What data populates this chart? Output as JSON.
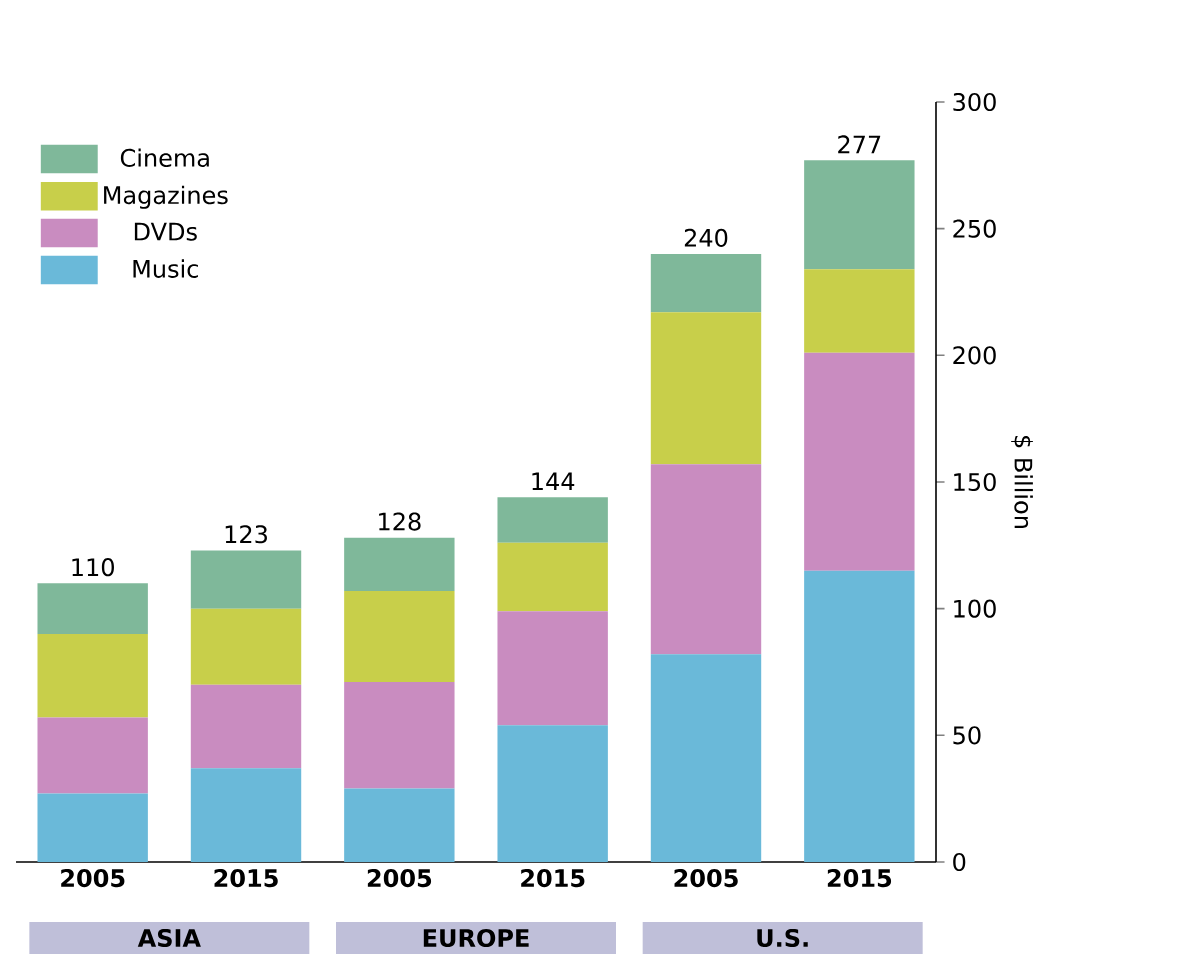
{
  "chart_data": {
    "type": "bar",
    "stacked": true,
    "categories": [
      "2005",
      "2015",
      "2005",
      "2015",
      "2005",
      "2015"
    ],
    "series": [
      {
        "name": "Music",
        "color": "#6ab9d9",
        "values": [
          27,
          37,
          29,
          54,
          82,
          115
        ]
      },
      {
        "name": "DVDs",
        "color": "#c98cc0",
        "values": [
          30,
          33,
          42,
          45,
          75,
          86
        ]
      },
      {
        "name": "Magazines",
        "color": "#c8cf4a",
        "values": [
          33,
          30,
          36,
          27,
          60,
          33
        ]
      },
      {
        "name": "Cinema",
        "color": "#7fb89a",
        "values": [
          20,
          23,
          21,
          18,
          23,
          43
        ]
      }
    ],
    "totals": [
      "110",
      "123",
      "128",
      "144",
      "240",
      "277"
    ],
    "ylabel": "$ Billion",
    "ylim": [
      0,
      300
    ],
    "yticks": [
      0,
      50,
      100,
      150,
      200,
      250,
      300
    ],
    "annotations": [
      "ASIA",
      "EUROPE",
      "U.S."
    ],
    "legend": "top left",
    "grid": false
  }
}
